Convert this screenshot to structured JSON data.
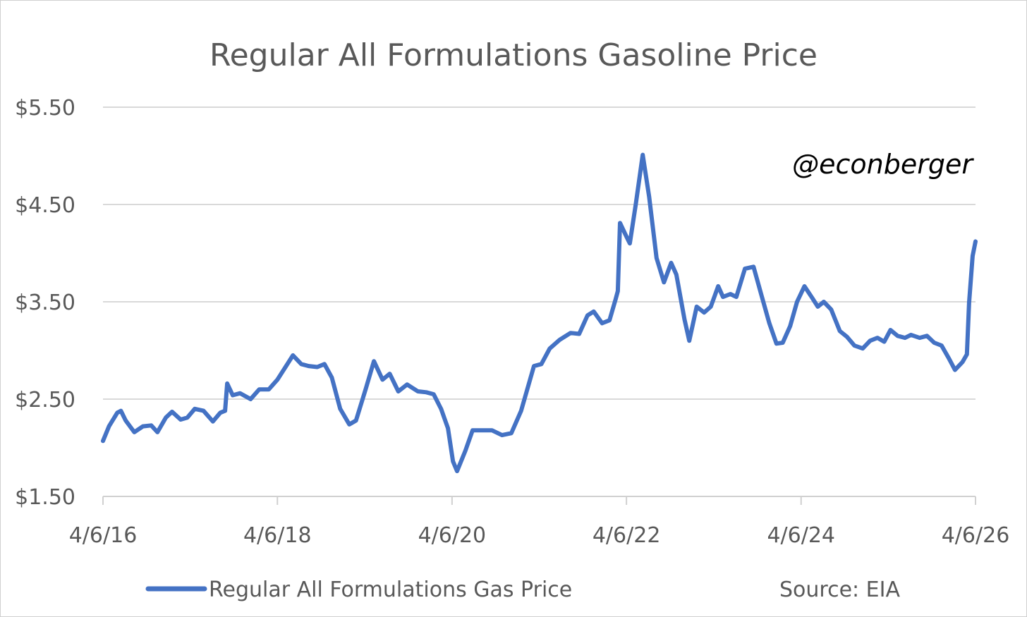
{
  "chart_data": {
    "type": "line",
    "title": "Regular All Formulations Gasoline Price",
    "watermark": "@econberger",
    "source": "Source: EIA",
    "legend_position": "bottom",
    "grid": true,
    "ylim": [
      1.5,
      5.5
    ],
    "y_ticks": [
      {
        "value": 1.5,
        "label": "$1.50"
      },
      {
        "value": 2.5,
        "label": "$2.50"
      },
      {
        "value": 3.5,
        "label": "$3.50"
      },
      {
        "value": 4.5,
        "label": "$4.50"
      },
      {
        "value": 5.5,
        "label": "$5.50"
      }
    ],
    "xlim": [
      "2016-04-06",
      "2026-04-06"
    ],
    "x_ticks": [
      {
        "value": "2016-04-06",
        "label": "4/6/16"
      },
      {
        "value": "2018-04-06",
        "label": "4/6/18"
      },
      {
        "value": "2020-04-06",
        "label": "4/6/20"
      },
      {
        "value": "2022-04-06",
        "label": "4/6/22"
      },
      {
        "value": "2024-04-06",
        "label": "4/6/24"
      },
      {
        "value": "2026-04-06",
        "label": "4/6/26"
      }
    ],
    "series": [
      {
        "name": "Regular All Formulations Gas Price",
        "color": "#4472c4",
        "points": [
          [
            "2016-04-06",
            2.07
          ],
          [
            "2016-05-01",
            2.22
          ],
          [
            "2016-06-05",
            2.36
          ],
          [
            "2016-06-20",
            2.38
          ],
          [
            "2016-07-10",
            2.28
          ],
          [
            "2016-08-15",
            2.16
          ],
          [
            "2016-09-20",
            2.22
          ],
          [
            "2016-10-25",
            2.23
          ],
          [
            "2016-11-20",
            2.16
          ],
          [
            "2016-12-25",
            2.31
          ],
          [
            "2017-01-20",
            2.37
          ],
          [
            "2017-02-25",
            2.29
          ],
          [
            "2017-03-25",
            2.31
          ],
          [
            "2017-04-25",
            2.4
          ],
          [
            "2017-06-01",
            2.38
          ],
          [
            "2017-07-10",
            2.27
          ],
          [
            "2017-08-10",
            2.36
          ],
          [
            "2017-08-30",
            2.38
          ],
          [
            "2017-09-08",
            2.66
          ],
          [
            "2017-10-01",
            2.54
          ],
          [
            "2017-11-01",
            2.56
          ],
          [
            "2017-12-15",
            2.5
          ],
          [
            "2018-01-20",
            2.6
          ],
          [
            "2018-03-01",
            2.6
          ],
          [
            "2018-04-06",
            2.7
          ],
          [
            "2018-05-15",
            2.85
          ],
          [
            "2018-06-10",
            2.95
          ],
          [
            "2018-07-15",
            2.86
          ],
          [
            "2018-08-15",
            2.84
          ],
          [
            "2018-09-20",
            2.83
          ],
          [
            "2018-10-20",
            2.86
          ],
          [
            "2018-11-20",
            2.72
          ],
          [
            "2018-12-25",
            2.4
          ],
          [
            "2019-02-01",
            2.24
          ],
          [
            "2019-03-01",
            2.28
          ],
          [
            "2019-04-10",
            2.6
          ],
          [
            "2019-05-15",
            2.89
          ],
          [
            "2019-06-20",
            2.7
          ],
          [
            "2019-07-20",
            2.76
          ],
          [
            "2019-08-25",
            2.58
          ],
          [
            "2019-10-01",
            2.65
          ],
          [
            "2019-11-15",
            2.58
          ],
          [
            "2019-12-20",
            2.57
          ],
          [
            "2020-01-20",
            2.55
          ],
          [
            "2020-02-20",
            2.4
          ],
          [
            "2020-03-20",
            2.2
          ],
          [
            "2020-04-10",
            1.86
          ],
          [
            "2020-04-27",
            1.76
          ],
          [
            "2020-06-01",
            1.97
          ],
          [
            "2020-07-01",
            2.18
          ],
          [
            "2020-08-15",
            2.18
          ],
          [
            "2020-09-20",
            2.18
          ],
          [
            "2020-11-01",
            2.13
          ],
          [
            "2020-12-10",
            2.15
          ],
          [
            "2021-01-20",
            2.38
          ],
          [
            "2021-03-15",
            2.84
          ],
          [
            "2021-04-15",
            2.86
          ],
          [
            "2021-05-20",
            3.02
          ],
          [
            "2021-07-01",
            3.11
          ],
          [
            "2021-08-15",
            3.18
          ],
          [
            "2021-09-20",
            3.17
          ],
          [
            "2021-10-25",
            3.36
          ],
          [
            "2021-11-20",
            3.4
          ],
          [
            "2021-12-25",
            3.28
          ],
          [
            "2022-01-25",
            3.31
          ],
          [
            "2022-02-20",
            3.53
          ],
          [
            "2022-03-01",
            3.61
          ],
          [
            "2022-03-10",
            4.31
          ],
          [
            "2022-04-06",
            4.17
          ],
          [
            "2022-04-20",
            4.1
          ],
          [
            "2022-05-15",
            4.5
          ],
          [
            "2022-06-13",
            5.01
          ],
          [
            "2022-07-10",
            4.58
          ],
          [
            "2022-08-10",
            3.95
          ],
          [
            "2022-09-10",
            3.7
          ],
          [
            "2022-10-10",
            3.9
          ],
          [
            "2022-11-01",
            3.78
          ],
          [
            "2022-12-05",
            3.32
          ],
          [
            "2022-12-25",
            3.1
          ],
          [
            "2023-01-25",
            3.45
          ],
          [
            "2023-02-25",
            3.39
          ],
          [
            "2023-03-25",
            3.45
          ],
          [
            "2023-04-25",
            3.66
          ],
          [
            "2023-05-15",
            3.55
          ],
          [
            "2023-06-15",
            3.58
          ],
          [
            "2023-07-10",
            3.55
          ],
          [
            "2023-08-15",
            3.84
          ],
          [
            "2023-09-20",
            3.86
          ],
          [
            "2023-10-25",
            3.55
          ],
          [
            "2023-11-25",
            3.28
          ],
          [
            "2023-12-25",
            3.07
          ],
          [
            "2024-01-20",
            3.08
          ],
          [
            "2024-02-20",
            3.25
          ],
          [
            "2024-03-20",
            3.5
          ],
          [
            "2024-04-20",
            3.66
          ],
          [
            "2024-05-20",
            3.55
          ],
          [
            "2024-06-15",
            3.45
          ],
          [
            "2024-07-10",
            3.5
          ],
          [
            "2024-08-10",
            3.42
          ],
          [
            "2024-09-15",
            3.2
          ],
          [
            "2024-10-15",
            3.14
          ],
          [
            "2024-11-15",
            3.05
          ],
          [
            "2024-12-20",
            3.02
          ],
          [
            "2025-01-20",
            3.1
          ],
          [
            "2025-02-20",
            3.13
          ],
          [
            "2025-03-20",
            3.09
          ],
          [
            "2025-04-15",
            3.21
          ],
          [
            "2025-05-15",
            3.15
          ],
          [
            "2025-06-15",
            3.13
          ],
          [
            "2025-07-10",
            3.16
          ],
          [
            "2025-08-15",
            3.13
          ],
          [
            "2025-09-15",
            3.15
          ],
          [
            "2025-10-15",
            3.08
          ],
          [
            "2025-11-15",
            3.05
          ],
          [
            "2025-12-15",
            2.92
          ],
          [
            "2026-01-10",
            2.8
          ],
          [
            "2026-02-10",
            2.88
          ],
          [
            "2026-03-01",
            2.96
          ],
          [
            "2026-03-10",
            3.49
          ],
          [
            "2026-03-25",
            3.97
          ],
          [
            "2026-04-06",
            4.12
          ]
        ]
      }
    ]
  }
}
